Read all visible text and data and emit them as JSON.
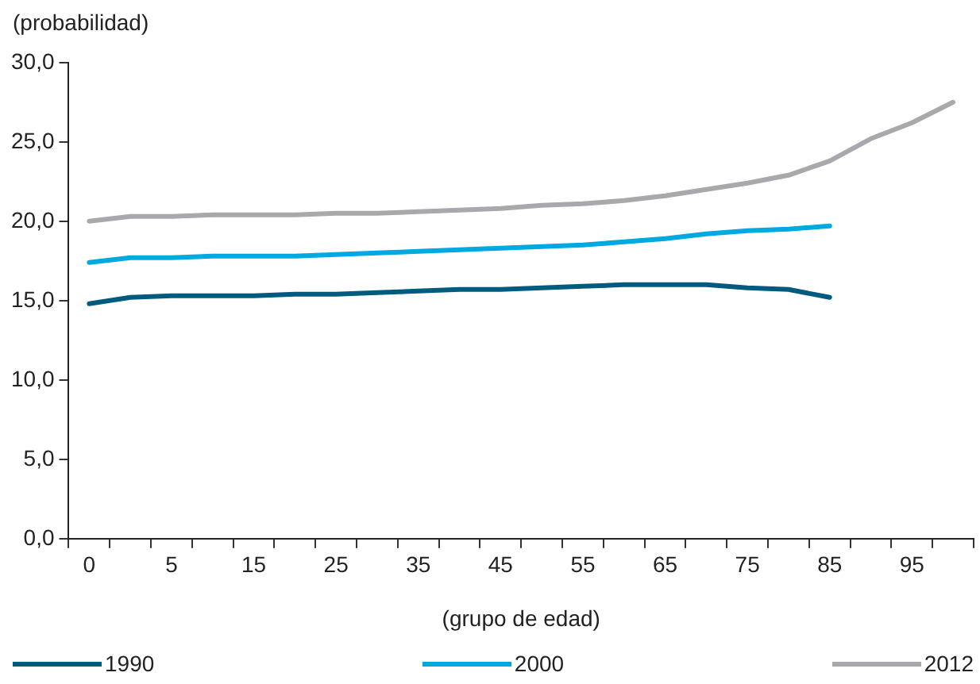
{
  "chart_data": {
    "type": "line",
    "ylabel": "(probabilidad)",
    "xlabel": "(grupo de edad)",
    "categories": [
      "0",
      null,
      "5",
      null,
      "15",
      null,
      "25",
      null,
      "35",
      null,
      "45",
      null,
      "55",
      null,
      "65",
      null,
      "75",
      null,
      "85",
      null,
      "95",
      null
    ],
    "series": [
      {
        "name": "1990",
        "color": "#005b7f",
        "values": [
          14.8,
          15.2,
          15.3,
          15.3,
          15.3,
          15.4,
          15.4,
          15.5,
          15.6,
          15.7,
          15.7,
          15.8,
          15.9,
          16.0,
          16.0,
          16.0,
          15.8,
          15.7,
          15.2,
          null,
          null,
          null
        ]
      },
      {
        "name": "2000",
        "color": "#00a9e0",
        "values": [
          17.4,
          17.7,
          17.7,
          17.8,
          17.8,
          17.8,
          17.9,
          18.0,
          18.1,
          18.2,
          18.3,
          18.4,
          18.5,
          18.7,
          18.9,
          19.2,
          19.4,
          19.5,
          19.7,
          null,
          null,
          null
        ]
      },
      {
        "name": "2012",
        "color": "#a7a9ac",
        "values": [
          20.0,
          20.3,
          20.3,
          20.4,
          20.4,
          20.4,
          20.5,
          20.5,
          20.6,
          20.7,
          20.8,
          21.0,
          21.1,
          21.3,
          21.6,
          22.0,
          22.4,
          22.9,
          23.8,
          25.2,
          26.2,
          27.5
        ]
      }
    ],
    "ylim": [
      0,
      30
    ],
    "yticks": [
      {
        "value": 0,
        "label": "0,0"
      },
      {
        "value": 5,
        "label": "5,0"
      },
      {
        "value": 10,
        "label": "10,0"
      },
      {
        "value": 15,
        "label": "15,0"
      },
      {
        "value": 20,
        "label": "20,0"
      },
      {
        "value": 25,
        "label": "25,0"
      },
      {
        "value": 30,
        "label": "30,0"
      }
    ],
    "grid": false,
    "legend": "bottom",
    "marker": "none",
    "line_style": "solid"
  }
}
